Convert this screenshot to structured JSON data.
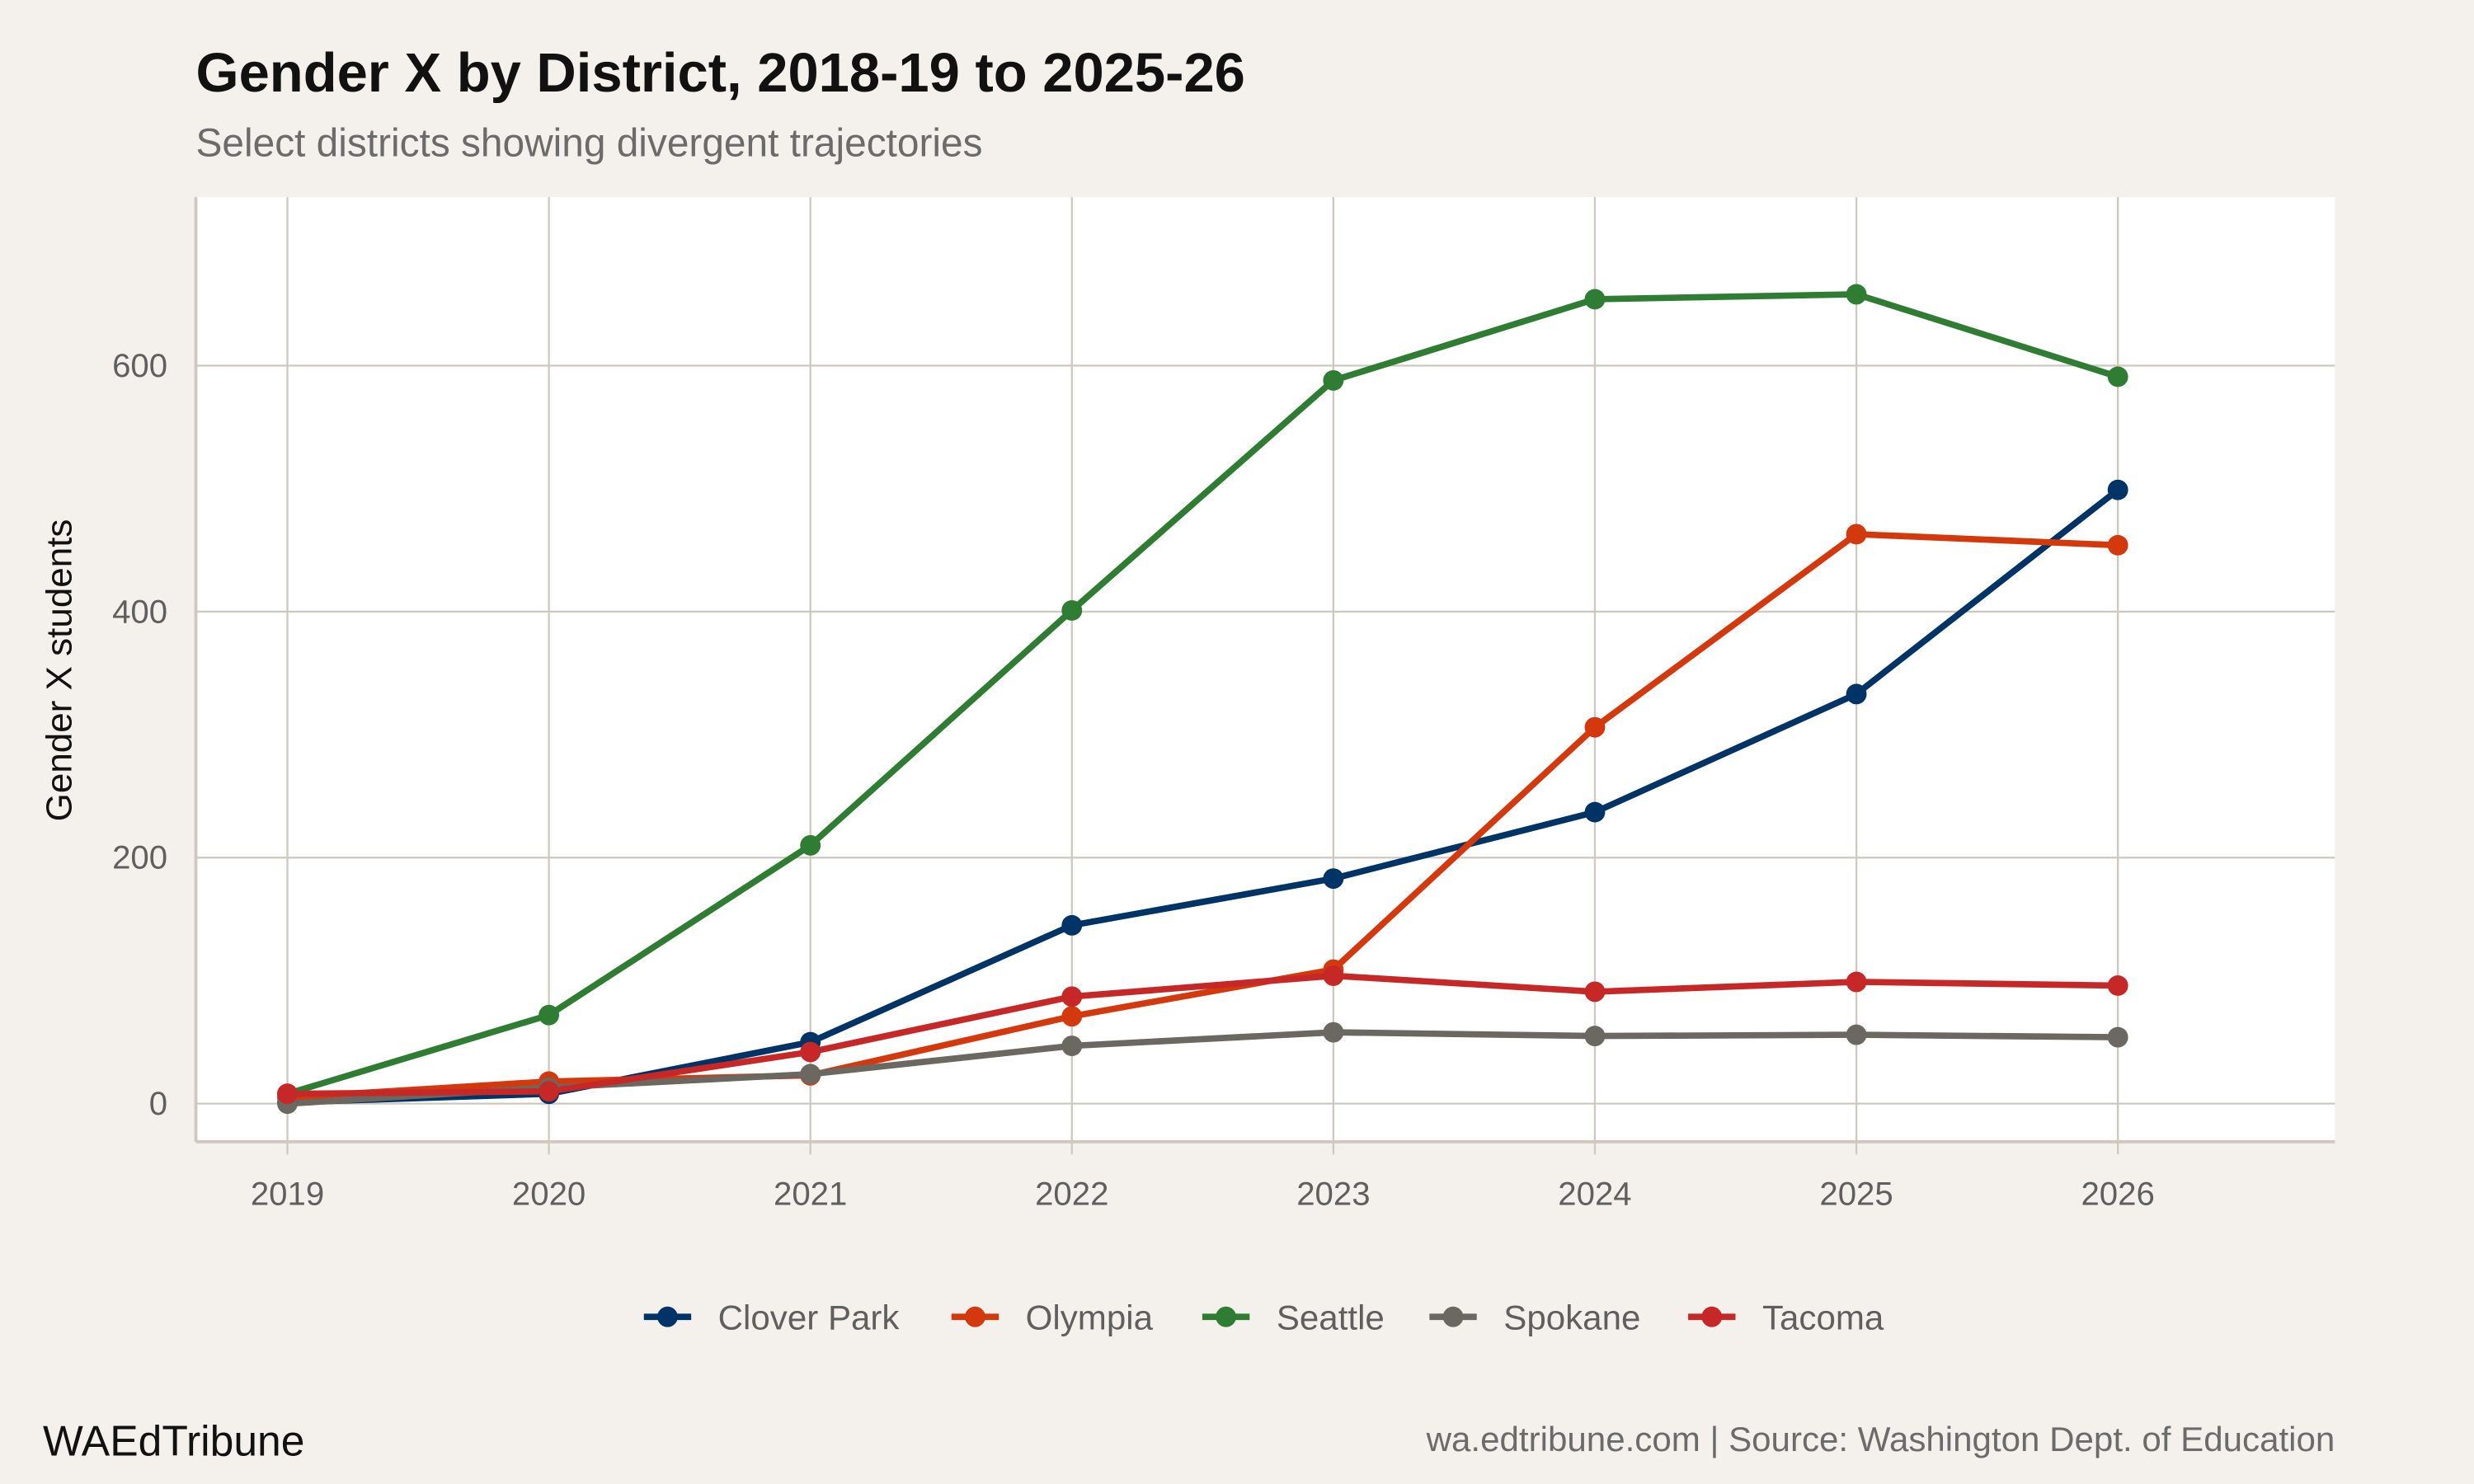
{
  "chart_data": {
    "type": "line",
    "title": "Gender X by District, 2018-19 to 2025-26",
    "subtitle": "Select districts showing divergent trajectories",
    "xlabel": "",
    "ylabel": "Gender X students",
    "x": [
      2019,
      2020,
      2021,
      2022,
      2023,
      2024,
      2025,
      2026
    ],
    "xticks": [
      "2019",
      "2020",
      "2021",
      "2022",
      "2023",
      "2024",
      "2025",
      "2026"
    ],
    "yticks": [
      "0",
      "200",
      "400",
      "600"
    ],
    "ytick_values": [
      0,
      200,
      400,
      600
    ],
    "xlim": [
      2018.65,
      2026.83
    ],
    "ylim": [
      -31,
      737
    ],
    "grid": true,
    "legend_position": "bottom",
    "series": [
      {
        "name": "Clover Park",
        "color": "#003366",
        "values": [
          1,
          8,
          50,
          145,
          183,
          237,
          333,
          499
        ]
      },
      {
        "name": "Olympia",
        "color": "#d4380d",
        "values": [
          5,
          18,
          23,
          71,
          109,
          306,
          463,
          454
        ]
      },
      {
        "name": "Seattle",
        "color": "#2e7d32",
        "values": [
          8,
          72,
          210,
          401,
          588,
          654,
          658,
          591
        ]
      },
      {
        "name": "Spokane",
        "color": "#6b6761",
        "values": [
          0,
          13,
          24,
          47,
          58,
          55,
          56,
          54
        ]
      },
      {
        "name": "Tacoma",
        "color": "#c62828",
        "values": [
          8,
          10,
          42,
          87,
          104,
          91,
          99,
          96
        ]
      }
    ]
  },
  "footer": {
    "brand": "WAEdTribune",
    "source": "wa.edtribune.com | Source: Washington Dept. of Education"
  }
}
